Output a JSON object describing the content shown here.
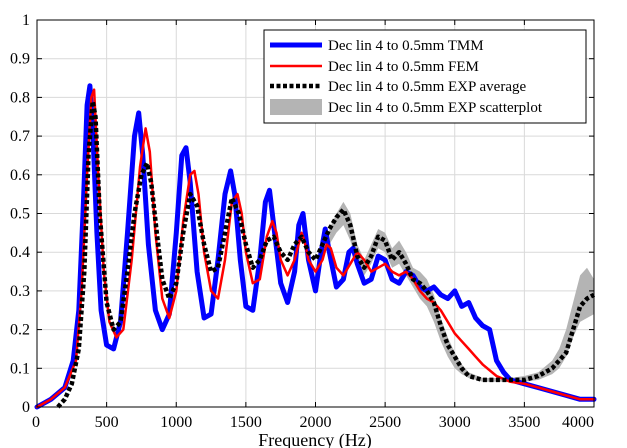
{
  "chart_data": {
    "type": "line",
    "title": "",
    "xlabel": "Frequency (Hz)",
    "ylabel": "",
    "xlim": [
      0,
      4000
    ],
    "ylim": [
      0,
      1
    ],
    "xticks": [
      0,
      500,
      1000,
      1500,
      2000,
      2500,
      3000,
      3500,
      4000
    ],
    "yticks": [
      0,
      0.1,
      0.2,
      0.3,
      0.4,
      0.5,
      0.6,
      0.7,
      0.8,
      0.9,
      1
    ],
    "xtick_labels": [
      "0",
      "500",
      "1000",
      "1500",
      "2000",
      "2500",
      "3000",
      "3500",
      "4000"
    ],
    "ytick_labels": [
      "0",
      "0.1",
      "0.2",
      "0.3",
      "0.4",
      "0.5",
      "0.6",
      "0.7",
      "0.8",
      "0.9",
      "1"
    ],
    "grid": true,
    "legend_position": "top-right",
    "series": [
      {
        "name": "Dec lin 4 to 0.5mm TMM",
        "color": "#0000ff",
        "style": "solid-thick",
        "x": [
          0,
          100,
          200,
          260,
          300,
          330,
          360,
          380,
          400,
          430,
          460,
          500,
          550,
          600,
          650,
          700,
          730,
          760,
          800,
          850,
          900,
          950,
          1000,
          1040,
          1070,
          1100,
          1150,
          1200,
          1250,
          1300,
          1350,
          1390,
          1420,
          1460,
          1500,
          1550,
          1600,
          1640,
          1670,
          1700,
          1750,
          1800,
          1850,
          1880,
          1910,
          1950,
          2000,
          2040,
          2070,
          2100,
          2150,
          2200,
          2240,
          2270,
          2300,
          2350,
          2400,
          2450,
          2500,
          2550,
          2600,
          2650,
          2700,
          2750,
          2800,
          2850,
          2900,
          2950,
          3000,
          3050,
          3100,
          3150,
          3200,
          3250,
          3300,
          3350,
          3400,
          3500,
          3600,
          3700,
          3800,
          3900,
          4000
        ],
        "values": [
          0.0,
          0.02,
          0.05,
          0.12,
          0.25,
          0.5,
          0.78,
          0.83,
          0.72,
          0.45,
          0.25,
          0.16,
          0.15,
          0.22,
          0.45,
          0.7,
          0.76,
          0.65,
          0.42,
          0.25,
          0.2,
          0.24,
          0.45,
          0.65,
          0.67,
          0.58,
          0.35,
          0.23,
          0.24,
          0.38,
          0.55,
          0.61,
          0.55,
          0.38,
          0.26,
          0.25,
          0.38,
          0.53,
          0.56,
          0.47,
          0.32,
          0.27,
          0.35,
          0.47,
          0.5,
          0.38,
          0.3,
          0.4,
          0.46,
          0.4,
          0.31,
          0.33,
          0.4,
          0.41,
          0.37,
          0.32,
          0.33,
          0.39,
          0.38,
          0.33,
          0.32,
          0.35,
          0.34,
          0.31,
          0.3,
          0.31,
          0.29,
          0.28,
          0.3,
          0.26,
          0.27,
          0.23,
          0.21,
          0.2,
          0.12,
          0.09,
          0.07,
          0.06,
          0.05,
          0.04,
          0.03,
          0.02,
          0.02
        ]
      },
      {
        "name": "Dec lin 4 to 0.5mm FEM",
        "color": "#ff0000",
        "style": "solid",
        "x": [
          0,
          100,
          200,
          280,
          320,
          360,
          390,
          410,
          440,
          480,
          520,
          570,
          620,
          680,
          740,
          780,
          810,
          850,
          900,
          950,
          1000,
          1050,
          1100,
          1130,
          1160,
          1200,
          1250,
          1300,
          1350,
          1400,
          1440,
          1470,
          1500,
          1550,
          1600,
          1650,
          1690,
          1720,
          1750,
          1800,
          1850,
          1900,
          1920,
          1950,
          2000,
          2050,
          2080,
          2110,
          2150,
          2200,
          2250,
          2300,
          2350,
          2400,
          2450,
          2500,
          2550,
          2600,
          2650,
          2700,
          2750,
          2800,
          2850,
          2900,
          2950,
          3000,
          3050,
          3100,
          3150,
          3200,
          3300,
          3400,
          3500,
          3600,
          3700,
          3800,
          3900,
          4000
        ],
        "values": [
          0.0,
          0.02,
          0.05,
          0.12,
          0.3,
          0.6,
          0.8,
          0.82,
          0.6,
          0.35,
          0.22,
          0.18,
          0.2,
          0.38,
          0.62,
          0.72,
          0.66,
          0.45,
          0.28,
          0.23,
          0.3,
          0.48,
          0.6,
          0.61,
          0.55,
          0.4,
          0.3,
          0.28,
          0.38,
          0.53,
          0.55,
          0.5,
          0.4,
          0.32,
          0.33,
          0.44,
          0.48,
          0.45,
          0.38,
          0.34,
          0.38,
          0.45,
          0.43,
          0.38,
          0.35,
          0.38,
          0.42,
          0.41,
          0.36,
          0.34,
          0.37,
          0.4,
          0.38,
          0.35,
          0.36,
          0.37,
          0.35,
          0.34,
          0.35,
          0.33,
          0.3,
          0.28,
          0.27,
          0.25,
          0.22,
          0.19,
          0.17,
          0.15,
          0.13,
          0.11,
          0.08,
          0.065,
          0.06,
          0.05,
          0.04,
          0.03,
          0.02,
          0.02
        ]
      },
      {
        "name": "Dec lin 4 to 0.5mm EXP average",
        "color": "#000000",
        "style": "dotted-thick",
        "x": [
          150,
          200,
          250,
          300,
          340,
          370,
          400,
          420,
          450,
          500,
          550,
          600,
          650,
          700,
          750,
          790,
          820,
          860,
          900,
          950,
          1000,
          1050,
          1100,
          1150,
          1200,
          1250,
          1300,
          1350,
          1400,
          1450,
          1500,
          1550,
          1600,
          1650,
          1700,
          1750,
          1800,
          1850,
          1900,
          1950,
          2000,
          2050,
          2100,
          2150,
          2200,
          2250,
          2300,
          2350,
          2400,
          2450,
          2500,
          2550,
          2600,
          2650,
          2700,
          2750,
          2800,
          2850,
          2900,
          2950,
          3000,
          3050,
          3100,
          3200,
          3300,
          3400,
          3500,
          3600,
          3700,
          3800,
          3850,
          3900,
          3950,
          4000
        ],
        "values": [
          0.0,
          0.02,
          0.06,
          0.15,
          0.35,
          0.65,
          0.79,
          0.75,
          0.5,
          0.27,
          0.2,
          0.22,
          0.35,
          0.5,
          0.6,
          0.63,
          0.58,
          0.45,
          0.33,
          0.28,
          0.32,
          0.45,
          0.55,
          0.52,
          0.42,
          0.35,
          0.36,
          0.45,
          0.54,
          0.5,
          0.42,
          0.36,
          0.38,
          0.43,
          0.44,
          0.4,
          0.38,
          0.42,
          0.44,
          0.4,
          0.38,
          0.42,
          0.46,
          0.49,
          0.51,
          0.47,
          0.39,
          0.36,
          0.39,
          0.44,
          0.43,
          0.38,
          0.4,
          0.37,
          0.33,
          0.32,
          0.3,
          0.27,
          0.21,
          0.16,
          0.13,
          0.1,
          0.08,
          0.07,
          0.07,
          0.07,
          0.07,
          0.08,
          0.1,
          0.14,
          0.2,
          0.26,
          0.28,
          0.29
        ]
      },
      {
        "name": "Dec lin 4 to 0.5mm EXP scatterplot",
        "color": "#b4b4b4",
        "style": "band",
        "x": [
          2100,
          2150,
          2200,
          2250,
          2300,
          2350,
          2400,
          2450,
          2500,
          2550,
          2600,
          2650,
          2700,
          2750,
          2800,
          2850,
          2900,
          2950,
          3000,
          3050,
          3100,
          3200,
          3300,
          3400,
          3500,
          3600,
          3700,
          3750,
          3800,
          3850,
          3900,
          3950,
          4000
        ],
        "lower": [
          0.42,
          0.45,
          0.47,
          0.43,
          0.37,
          0.34,
          0.37,
          0.41,
          0.4,
          0.36,
          0.37,
          0.34,
          0.31,
          0.28,
          0.26,
          0.22,
          0.17,
          0.13,
          0.1,
          0.085,
          0.075,
          0.065,
          0.065,
          0.065,
          0.065,
          0.07,
          0.085,
          0.1,
          0.13,
          0.18,
          0.22,
          0.23,
          0.24
        ],
        "upper": [
          0.46,
          0.5,
          0.53,
          0.5,
          0.42,
          0.38,
          0.42,
          0.46,
          0.45,
          0.41,
          0.43,
          0.4,
          0.36,
          0.35,
          0.33,
          0.29,
          0.23,
          0.18,
          0.14,
          0.11,
          0.09,
          0.075,
          0.075,
          0.075,
          0.08,
          0.09,
          0.12,
          0.15,
          0.2,
          0.27,
          0.34,
          0.36,
          0.33
        ]
      }
    ]
  }
}
